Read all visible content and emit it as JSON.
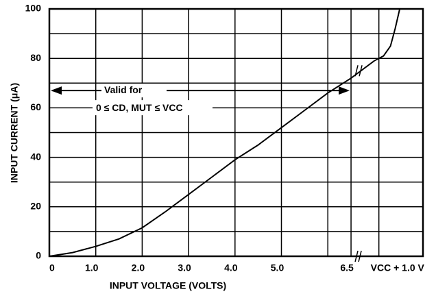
{
  "chart_data": {
    "type": "line",
    "x": [
      0,
      0.5,
      1.0,
      1.5,
      2.0,
      2.5,
      3.0,
      3.5,
      4.0,
      4.5,
      5.0,
      5.5,
      6.0,
      6.5,
      7.0,
      7.2,
      7.35,
      7.45,
      7.55
    ],
    "series": [
      {
        "color": "#000000",
        "values": [
          0,
          1.5,
          4,
          7,
          11.5,
          18,
          25,
          32,
          39,
          45,
          52,
          59,
          66,
          72,
          79,
          81,
          85,
          92,
          100
        ]
      }
    ],
    "xlabel": "INPUT VOLTAGE (VOLTS)",
    "ylabel": "INPUT CURRENT (μA)",
    "xlim": [
      0,
      8.05
    ],
    "ylim": [
      0,
      100
    ],
    "xticks": [
      0,
      {
        "value": 1,
        "label": "1.0"
      },
      {
        "value": 2,
        "label": "2.0"
      },
      {
        "value": 3,
        "label": "3.0"
      },
      {
        "value": 4,
        "label": "4.0"
      },
      {
        "value": 5,
        "label": "5.0"
      },
      6.5,
      {
        "value": 7.5,
        "label": "VCC + 1.0 V"
      }
    ],
    "yticks": [
      0,
      20,
      40,
      60,
      80,
      100
    ],
    "xgrid": [
      1,
      2,
      3,
      4,
      5,
      6,
      6.5,
      7.1
    ],
    "ygrid": [
      10,
      20,
      30,
      40,
      50,
      60,
      70,
      80,
      90
    ],
    "grid": true,
    "annotations": [
      "Valid for",
      "0 ≤ CD, MUT ≤ VCC"
    ]
  }
}
